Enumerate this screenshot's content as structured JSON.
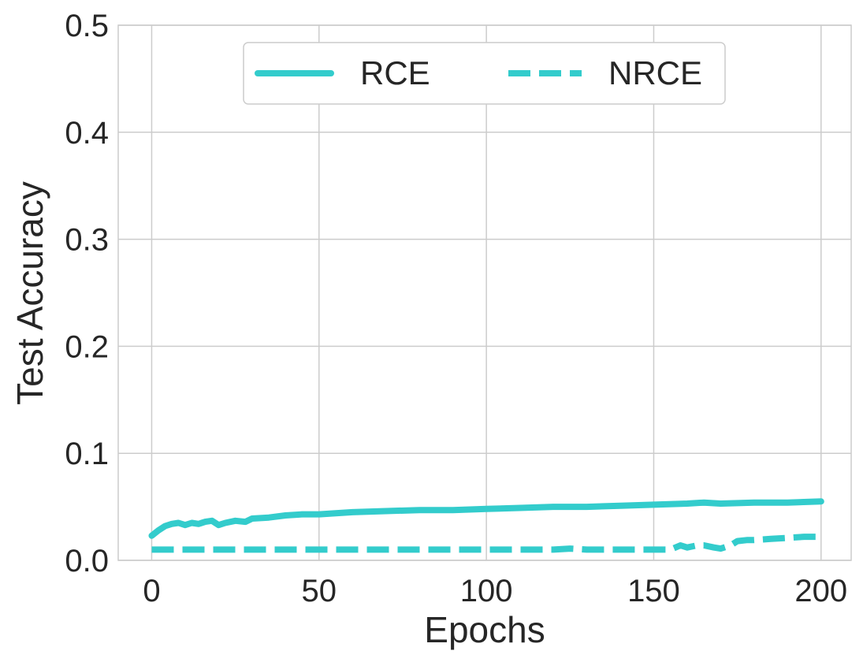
{
  "chart_data": {
    "type": "line",
    "xlabel": "Epochs",
    "ylabel": "Test Accuracy",
    "xlim": [
      -10,
      209
    ],
    "ylim": [
      0.0,
      0.5
    ],
    "xticks": [
      0,
      50,
      100,
      150,
      200
    ],
    "yticks": [
      0.0,
      0.1,
      0.2,
      0.3,
      0.4,
      0.5
    ],
    "xtick_labels": [
      "0",
      "50",
      "100",
      "150",
      "200"
    ],
    "ytick_labels": [
      "0.0",
      "0.1",
      "0.2",
      "0.3",
      "0.4",
      "0.5"
    ],
    "grid": true,
    "legend_position": "top-center",
    "series": [
      {
        "name": "RCE",
        "color": "#33cccc",
        "style": "solid",
        "x": [
          0,
          2,
          4,
          6,
          8,
          10,
          12,
          14,
          16,
          18,
          20,
          22,
          25,
          28,
          30,
          35,
          40,
          45,
          50,
          55,
          60,
          70,
          80,
          90,
          100,
          110,
          120,
          130,
          140,
          150,
          160,
          165,
          170,
          180,
          190,
          200
        ],
        "y": [
          0.023,
          0.028,
          0.032,
          0.034,
          0.035,
          0.033,
          0.035,
          0.034,
          0.036,
          0.037,
          0.033,
          0.035,
          0.037,
          0.036,
          0.039,
          0.04,
          0.042,
          0.043,
          0.043,
          0.044,
          0.045,
          0.046,
          0.047,
          0.047,
          0.048,
          0.049,
          0.05,
          0.05,
          0.051,
          0.052,
          0.053,
          0.054,
          0.053,
          0.054,
          0.054,
          0.055
        ]
      },
      {
        "name": "NRCE",
        "color": "#33cccc",
        "style": "dashed",
        "x": [
          0,
          20,
          40,
          60,
          80,
          100,
          120,
          125,
          130,
          140,
          150,
          155,
          158,
          160,
          163,
          165,
          168,
          170,
          173,
          175,
          178,
          180,
          185,
          190,
          195,
          200
        ],
        "y": [
          0.01,
          0.01,
          0.01,
          0.01,
          0.01,
          0.01,
          0.01,
          0.011,
          0.01,
          0.01,
          0.01,
          0.01,
          0.014,
          0.012,
          0.014,
          0.014,
          0.012,
          0.011,
          0.014,
          0.018,
          0.019,
          0.019,
          0.02,
          0.021,
          0.022,
          0.022
        ]
      }
    ]
  }
}
